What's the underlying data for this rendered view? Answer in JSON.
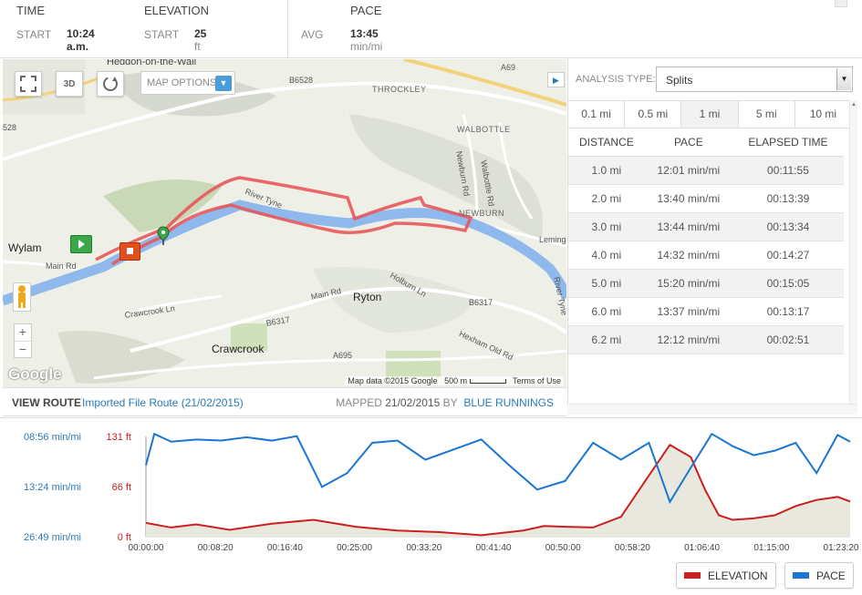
{
  "stats": {
    "time": {
      "heading": "TIME",
      "label": "START",
      "value": "10:24 a.m."
    },
    "elevation": {
      "heading": "ELEVATION",
      "label": "START",
      "value": "25",
      "unit": "ft"
    },
    "pace": {
      "heading": "PACE",
      "label": "AVG",
      "value": "13:45",
      "unit": "min/mi"
    }
  },
  "map": {
    "options_label": "MAP OPTIONS",
    "ctrl_3d": "3D",
    "labels": {
      "heddon": "Heddon-on-the-Wall",
      "a69": "A69",
      "b6528": "B6528",
      "throckley": "THROCKLEY",
      "walbottle": "WALBOTTLE",
      "walbottle_rd": "Walbottle Rd",
      "newburn_rd": "Newburn Rd",
      "newburn": "NEWBURN",
      "leming": "Leming",
      "river_tyne_1": "River Tyne",
      "river_tyne_2": "River Tyne",
      "wylam": "Wylam",
      "main_rd_1": "Main Rd",
      "main_rd_2": "Main Rd",
      "ryton": "Ryton",
      "holburn": "Holburn Ln",
      "b6317_1": "B6317",
      "b6317_2": "B6317",
      "crawcrook_ln": "Crawcrook Ln",
      "crawcrook": "Crawcrook",
      "a695": "A695",
      "hexham": "Hexham Old Rd",
      "n528": "528"
    },
    "attribution": "Map data ©2015 Google",
    "scale": "500 m",
    "terms": "Terms of Use",
    "google": "Google",
    "zoom_in": "+",
    "zoom_out": "−"
  },
  "route": {
    "view_label": "VIEW ROUTE",
    "link": "Imported File Route (21/02/2015)",
    "mapped_label": "MAPPED",
    "mapped_date": "21/02/2015",
    "by_label": "BY",
    "by_user": "BLUE RUNNINGS"
  },
  "analysis": {
    "label": "ANALYSIS TYPE:",
    "selected": "Splits",
    "tabs": [
      "0.1 mi",
      "0.5 mi",
      "1 mi",
      "5 mi",
      "10 mi"
    ],
    "columns": [
      "DISTANCE",
      "PACE",
      "ELAPSED TIME"
    ],
    "rows": [
      [
        "1.0 mi",
        "12:01 min/mi",
        "00:11:55"
      ],
      [
        "2.0 mi",
        "13:40 min/mi",
        "00:13:39"
      ],
      [
        "3.0 mi",
        "13:44 min/mi",
        "00:13:34"
      ],
      [
        "4.0 mi",
        "14:32 min/mi",
        "00:14:27"
      ],
      [
        "5.0 mi",
        "15:20 min/mi",
        "00:15:05"
      ],
      [
        "6.0 mi",
        "13:37 min/mi",
        "00:13:17"
      ],
      [
        "6.2 mi",
        "12:12 min/mi",
        "00:02:51"
      ]
    ]
  },
  "colors": {
    "pace": "#1a76d2",
    "elevation": "#cc1f1f",
    "route": "#e8585a",
    "river": "#8fb8ec",
    "accent": "#2a7ab8"
  },
  "chart_data": {
    "type": "line",
    "title": "",
    "x_ticks": [
      "00:00:00",
      "00:08:20",
      "00:16:40",
      "00:25:00",
      "00:33:20",
      "00:41:40",
      "00:50:00",
      "00:58:20",
      "01:06:40",
      "01:15:00",
      "01:23:20"
    ],
    "x_range_seconds": [
      0,
      5040
    ],
    "pace_axis": {
      "ticks": [
        "08:56 min/mi",
        "13:24 min/mi",
        "26:49 min/mi"
      ],
      "inverted": true
    },
    "elevation_axis": {
      "ticks": [
        "131 ft",
        "66 ft",
        "0 ft"
      ],
      "ylim": [
        0,
        131
      ]
    },
    "series": [
      {
        "name": "ELEVATION",
        "unit": "ft",
        "x": [
          0,
          180,
          360,
          600,
          900,
          1200,
          1500,
          1800,
          2100,
          2400,
          2700,
          2850,
          3000,
          3200,
          3400,
          3600,
          3750,
          3900,
          4000,
          4100,
          4200,
          4350,
          4500,
          4650,
          4800,
          4950,
          5040
        ],
        "values": [
          18,
          12,
          16,
          9,
          17,
          22,
          13,
          8,
          6,
          2,
          8,
          14,
          13,
          12,
          26,
          80,
          120,
          104,
          62,
          28,
          22,
          24,
          28,
          40,
          48,
          52,
          46
        ]
      },
      {
        "name": "PACE",
        "unit": "min/mi",
        "x": [
          0,
          60,
          180,
          360,
          540,
          720,
          900,
          1080,
          1260,
          1440,
          1620,
          1800,
          2000,
          2200,
          2400,
          2600,
          2800,
          3000,
          3200,
          3400,
          3600,
          3750,
          3900,
          4050,
          4200,
          4350,
          4500,
          4650,
          4800,
          4950,
          5040
        ],
        "values": [
          11.5,
          8.7,
          9.4,
          9.2,
          9.3,
          9.0,
          9.3,
          8.9,
          13.5,
          12.2,
          9.5,
          9.3,
          11.0,
          10.1,
          9.2,
          11.5,
          14.2,
          12.9,
          9.5,
          11.0,
          9.5,
          17.5,
          11.7,
          8.7,
          9.8,
          10.6,
          10.2,
          9.5,
          12.2,
          8.8,
          9.4
        ]
      }
    ],
    "legend": [
      "ELEVATION",
      "PACE"
    ]
  }
}
